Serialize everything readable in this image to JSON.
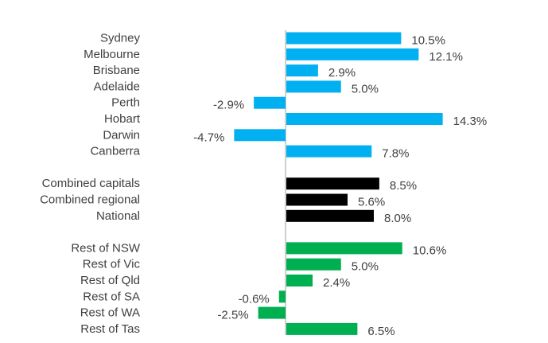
{
  "chart_data": {
    "type": "bar",
    "orientation": "horizontal",
    "grid": false,
    "legend": "none",
    "colors": {
      "capitals": "#00b0f0",
      "summary": "#000000",
      "regional": "#00b050",
      "axis": "#bfbfbf",
      "text": "#404040"
    },
    "groups": [
      {
        "color_key": "capitals",
        "items": [
          {
            "category": "Sydney",
            "value": 10.5,
            "label": "10.5%"
          },
          {
            "category": "Melbourne",
            "value": 12.1,
            "label": "12.1%"
          },
          {
            "category": "Brisbane",
            "value": 2.9,
            "label": "2.9%"
          },
          {
            "category": "Adelaide",
            "value": 5.0,
            "label": "5.0%"
          },
          {
            "category": "Perth",
            "value": -2.9,
            "label": "-2.9%"
          },
          {
            "category": "Hobart",
            "value": 14.3,
            "label": "14.3%"
          },
          {
            "category": "Darwin",
            "value": -4.7,
            "label": "-4.7%"
          },
          {
            "category": "Canberra",
            "value": 7.8,
            "label": "7.8%"
          }
        ]
      },
      {
        "color_key": "summary",
        "items": [
          {
            "category": "Combined capitals",
            "value": 8.5,
            "label": "8.5%"
          },
          {
            "category": "Combined regional",
            "value": 5.6,
            "label": "5.6%"
          },
          {
            "category": "National",
            "value": 8.0,
            "label": "8.0%"
          }
        ]
      },
      {
        "color_key": "regional",
        "items": [
          {
            "category": "Rest of NSW",
            "value": 10.6,
            "label": "10.6%"
          },
          {
            "category": "Rest of Vic",
            "value": 5.0,
            "label": "5.0%"
          },
          {
            "category": "Rest of Qld",
            "value": 2.4,
            "label": "2.4%"
          },
          {
            "category": "Rest of SA",
            "value": -0.6,
            "label": "-0.6%"
          },
          {
            "category": "Rest of WA",
            "value": -2.5,
            "label": "-2.5%"
          },
          {
            "category": "Rest of Tas",
            "value": 6.5,
            "label": "6.5%"
          }
        ]
      }
    ]
  }
}
